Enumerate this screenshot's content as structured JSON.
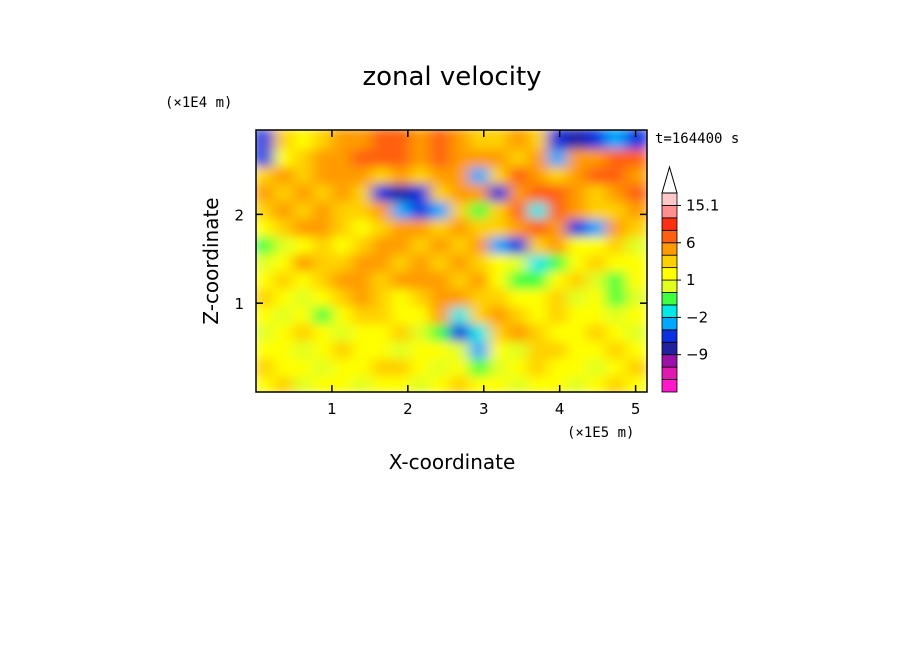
{
  "chart_data": {
    "type": "heatmap",
    "title": "zonal velocity",
    "xlabel": "X-coordinate",
    "ylabel": "Z-coordinate",
    "x_unit_label": "(×1E5 m)",
    "y_unit_label": "(×1E4 m)",
    "time_label": "t=164400 s",
    "xlim": [
      0,
      5.15
    ],
    "ylim": [
      0,
      2.95
    ],
    "x_ticks": [
      "1",
      "2",
      "3",
      "4",
      "5"
    ],
    "y_ticks": [
      "1",
      "2"
    ],
    "colorbar": {
      "levels": [
        -15,
        -12,
        -9,
        -6,
        -3,
        -2,
        -1,
        0,
        1,
        2,
        3,
        6,
        9,
        12,
        15.1
      ],
      "labeled_levels": [
        "15.1",
        "6",
        "1",
        "-2",
        "-9"
      ],
      "colors": [
        "#ff19c8",
        "#e01ab0",
        "#9b10a8",
        "#2020a0",
        "#0a30e0",
        "#00a8ff",
        "#00e8e8",
        "#40ff40",
        "#e0ff20",
        "#ffff00",
        "#ffd000",
        "#ff9b00",
        "#ff6010",
        "#ff3010",
        "#ff9090",
        "#ffc8c8"
      ],
      "extend": "max"
    },
    "description_of_field": "rows of Z bands (bottom to top) with values across X; values in m/s",
    "grid": false,
    "rows": [
      [
        1,
        2,
        0,
        1,
        1,
        0,
        1,
        1,
        0,
        1,
        2,
        1,
        1,
        0,
        1,
        1,
        0,
        1,
        2,
        1
      ],
      [
        2,
        1,
        1,
        0,
        1,
        1,
        2,
        2,
        1,
        0,
        1,
        -1,
        0,
        1,
        2,
        1,
        1,
        0,
        1,
        2
      ],
      [
        1,
        1,
        0,
        1,
        2,
        1,
        1,
        0,
        1,
        1,
        0,
        -3,
        1,
        0,
        2,
        2,
        1,
        1,
        2,
        1
      ],
      [
        0,
        1,
        2,
        1,
        0,
        1,
        1,
        2,
        0,
        -1,
        -4,
        -2,
        2,
        3,
        2,
        1,
        1,
        2,
        1,
        0
      ],
      [
        1,
        0,
        1,
        -1,
        1,
        2,
        2,
        1,
        1,
        3,
        -2,
        2,
        3,
        2,
        1,
        2,
        1,
        1,
        0,
        1
      ],
      [
        2,
        1,
        0,
        1,
        2,
        3,
        2,
        1,
        2,
        3,
        3,
        2,
        2,
        1,
        1,
        2,
        0,
        1,
        -1,
        0
      ],
      [
        1,
        2,
        1,
        2,
        3,
        3,
        2,
        3,
        3,
        3,
        2,
        3,
        1,
        -1,
        -1,
        1,
        2,
        0,
        -1,
        1
      ],
      [
        0,
        1,
        3,
        2,
        2,
        3,
        3,
        2,
        3,
        2,
        3,
        2,
        1,
        0,
        -2,
        -1,
        1,
        2,
        1,
        1
      ],
      [
        -1,
        0,
        1,
        2,
        1,
        2,
        3,
        3,
        2,
        3,
        2,
        3,
        -3,
        -4,
        2,
        3,
        1,
        1,
        2,
        0
      ],
      [
        1,
        2,
        3,
        3,
        2,
        1,
        2,
        3,
        3,
        2,
        3,
        2,
        2,
        3,
        6,
        3,
        -6,
        -3,
        3,
        2
      ],
      [
        2,
        3,
        2,
        3,
        2,
        2,
        3,
        -3,
        -6,
        -3,
        2,
        -1,
        2,
        6,
        -2,
        6,
        3,
        2,
        2,
        3
      ],
      [
        3,
        2,
        3,
        2,
        3,
        2,
        -6,
        -9,
        -6,
        2,
        3,
        3,
        -6,
        3,
        6,
        6,
        3,
        2,
        3,
        6
      ],
      [
        2,
        3,
        2,
        3,
        3,
        3,
        2,
        3,
        2,
        3,
        3,
        -3,
        2,
        6,
        3,
        2,
        3,
        6,
        6,
        3
      ],
      [
        -6,
        1,
        2,
        3,
        3,
        6,
        6,
        6,
        3,
        6,
        3,
        3,
        3,
        2,
        3,
        -3,
        3,
        3,
        6,
        6
      ],
      [
        -6,
        2,
        1,
        2,
        3,
        3,
        6,
        6,
        3,
        6,
        3,
        2,
        2,
        3,
        2,
        -6,
        -9,
        -6,
        -3,
        -6
      ]
    ]
  }
}
